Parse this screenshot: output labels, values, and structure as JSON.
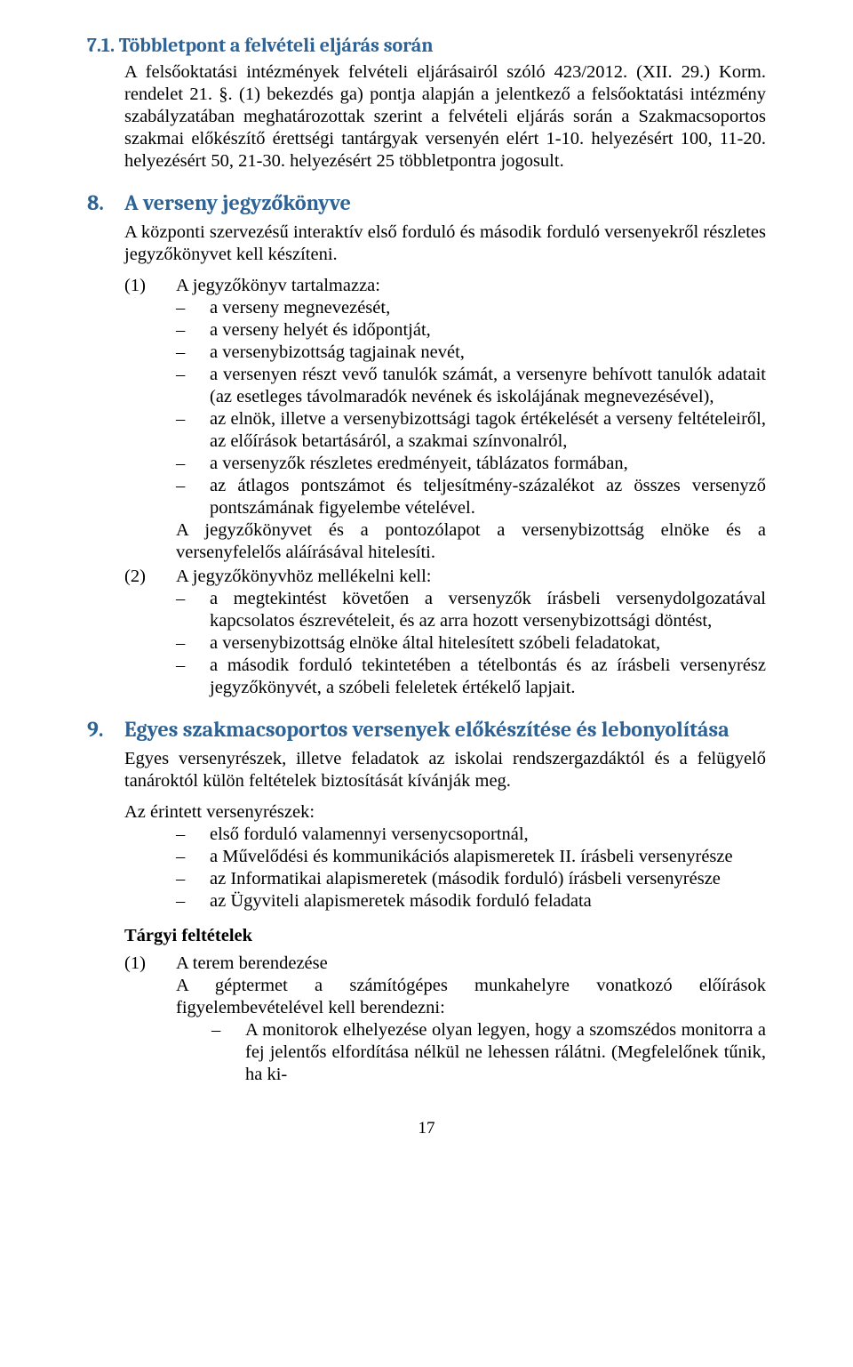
{
  "section71": {
    "heading": "7.1.  Többletpont a felvételi eljárás során",
    "p1": "A felsőoktatási intézmények felvételi eljárásairól szóló 423/2012. (XII. 29.) Korm. rendelet 21. §. (1) bekezdés ga) pontja alapján a jelentkező a felsőoktatási intézmény szabályzatában meghatározottak szerint a felvételi eljárás során a Szakmacsoportos szakmai előkészítő érettségi tantárgyak versenyén elért 1-10. helyezésért 100, 11-20. helyezésért 50, 21-30. helyezésért 25 többletpontra jogosult."
  },
  "section8": {
    "num": "8.",
    "title": "A verseny jegyzőkönyve",
    "p1": "A központi szervezésű interaktív első forduló és második forduló versenyekről részletes jegyzőkönyvet kell készíteni.",
    "item1_label": "(1)",
    "item1_intro": "A jegyzőkönyv tartalmazza:",
    "item1_list": [
      "a verseny megnevezését,",
      "a verseny helyét és időpontját,",
      "a versenybizottság tagjainak nevét,",
      "a versenyen részt vevő tanulók számát, a versenyre behívott tanulók adatait (az esetleges távolmaradók nevének és iskolájának megnevezésével),",
      "az elnök, illetve a versenybizottsági tagok értékelését a verseny feltételeiről, az előírások betartásáról, a szakmai színvonalról,",
      "a versenyzők részletes eredményeit, táblázatos formában,",
      "az átlagos pontszámot és teljesítmény-százalékot az összes versenyző pontszámának figyelembe vételével."
    ],
    "item1_after": "A jegyzőkönyvet és a pontozólapot a versenybizottság elnöke és a versenyfelelős aláírásával hitelesíti.",
    "item2_label": "(2)",
    "item2_intro": "A jegyzőkönyvhöz mellékelni kell:",
    "item2_list": [
      "a megtekintést követően a versenyzők írásbeli versenydolgozatával kapcsolatos észrevételeit, és az arra hozott versenybizottsági döntést,",
      "a versenybizottság elnöke által hitelesített szóbeli feladatokat,",
      "a második forduló tekintetében a tételbontás és az írásbeli versenyrész jegyzőkönyvét, a szóbeli feleletek értékelő lapjait."
    ]
  },
  "section9": {
    "num": "9.",
    "title": "Egyes szakmacsoportos versenyek előkészítése és lebonyolítása",
    "p1": "Egyes versenyrészek, illetve feladatok az iskolai rendszergazdáktól és a felügyelő tanároktól külön feltételek biztosítását kívánják meg.",
    "p2": "Az érintett versenyrészek:",
    "list": [
      "első forduló valamennyi versenycsoportnál,",
      "a Művelődési és kommunikációs alapismeretek II. írásbeli versenyrésze",
      "az Informatikai alapismeretek (második forduló) írásbeli versenyrésze",
      "az Ügyviteli alapismeretek második forduló feladata"
    ],
    "sub_heading": "Tárgyi feltételek",
    "sub1_label": "(1)",
    "sub1_intro": "A terem berendezése",
    "sub1_p": "A géptermet a számítógépes munkahelyre vonatkozó előírások figyelembevételével kell berendezni:",
    "sub1_list": [
      "A monitorok elhelyezése olyan legyen, hogy a szomszédos monitorra a fej jelentős elfordítása nélkül ne lehessen rálátni. (Megfelelőnek tűnik, ha ki-"
    ]
  },
  "pagenum": "17"
}
